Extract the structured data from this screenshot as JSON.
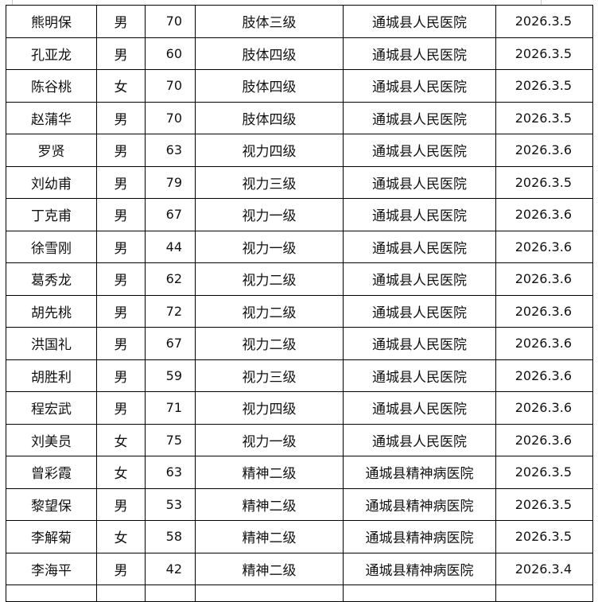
{
  "table": {
    "rows": [
      {
        "name": "熊明保",
        "gender": "男",
        "age": "70",
        "level": "肢体三级",
        "hospital": "通城县人民医院",
        "date": "2026.3.5"
      },
      {
        "name": "孔亚龙",
        "gender": "男",
        "age": "60",
        "level": "肢体四级",
        "hospital": "通城县人民医院",
        "date": "2026.3.5"
      },
      {
        "name": "陈谷桃",
        "gender": "女",
        "age": "70",
        "level": "肢体四级",
        "hospital": "通城县人民医院",
        "date": "2026.3.5"
      },
      {
        "name": "赵蒲华",
        "gender": "男",
        "age": "70",
        "level": "肢体四级",
        "hospital": "通城县人民医院",
        "date": "2026.3.5"
      },
      {
        "name": "罗贤",
        "gender": "男",
        "age": "63",
        "level": "视力四级",
        "hospital": "通城县人民医院",
        "date": "2026.3.6"
      },
      {
        "name": "刘幼甫",
        "gender": "男",
        "age": "79",
        "level": "视力三级",
        "hospital": "通城县人民医院",
        "date": "2026.3.5"
      },
      {
        "name": "丁克甫",
        "gender": "男",
        "age": "67",
        "level": "视力一级",
        "hospital": "通城县人民医院",
        "date": "2026.3.6"
      },
      {
        "name": "徐雪刚",
        "gender": "男",
        "age": "44",
        "level": "视力一级",
        "hospital": "通城县人民医院",
        "date": "2026.3.6"
      },
      {
        "name": "葛秀龙",
        "gender": "男",
        "age": "62",
        "level": "视力二级",
        "hospital": "通城县人民医院",
        "date": "2026.3.6"
      },
      {
        "name": "胡先桃",
        "gender": "男",
        "age": "72",
        "level": "视力二级",
        "hospital": "通城县人民医院",
        "date": "2026.3.6"
      },
      {
        "name": "洪国礼",
        "gender": "男",
        "age": "67",
        "level": "视力二级",
        "hospital": "通城县人民医院",
        "date": "2026.3.6"
      },
      {
        "name": "胡胜利",
        "gender": "男",
        "age": "59",
        "level": "视力三级",
        "hospital": "通城县人民医院",
        "date": "2026.3.6"
      },
      {
        "name": "程宏武",
        "gender": "男",
        "age": "71",
        "level": "视力四级",
        "hospital": "通城县人民医院",
        "date": "2026.3.6"
      },
      {
        "name": "刘美员",
        "gender": "女",
        "age": "75",
        "level": "视力一级",
        "hospital": "通城县人民医院",
        "date": "2026.3.6"
      },
      {
        "name": "曾彩霞",
        "gender": "女",
        "age": "63",
        "level": "精神二级",
        "hospital": "通城县精神病医院",
        "date": "2026.3.5"
      },
      {
        "name": "黎望保",
        "gender": "男",
        "age": "53",
        "level": "精神二级",
        "hospital": "通城县精神病医院",
        "date": "2026.3.5"
      },
      {
        "name": "李解菊",
        "gender": "女",
        "age": "58",
        "level": "精神二级",
        "hospital": "通城县精神病医院",
        "date": "2026.3.5"
      },
      {
        "name": "李海平",
        "gender": "男",
        "age": "42",
        "level": "精神二级",
        "hospital": "通城县精神病医院",
        "date": "2026.3.4"
      }
    ]
  }
}
